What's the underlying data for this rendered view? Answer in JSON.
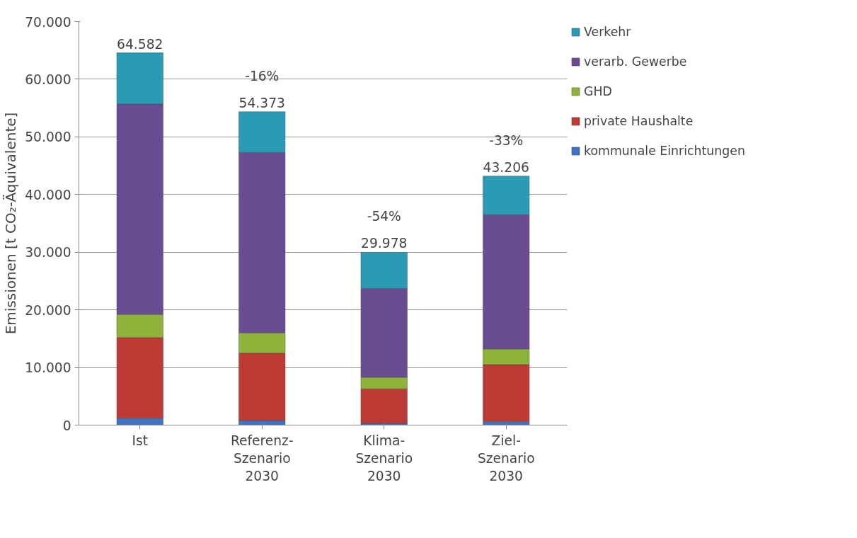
{
  "chart_data": {
    "type": "bar",
    "stacked": true,
    "ylabel": "Emissionen [t CO₂-Äquivalente]",
    "categories": [
      "Ist",
      "Referenz-\nSzenario\n2030",
      "Klima-\nSzenario\n2030",
      "Ziel-\nSzenario\n2030"
    ],
    "series": [
      {
        "name": "kommunale Einrichtungen",
        "color": "#3f72c0",
        "values": [
          1200,
          800,
          300,
          600
        ]
      },
      {
        "name": "private Haushalte",
        "color": "#be3a34",
        "values": [
          14000,
          11700,
          6000,
          9900
        ]
      },
      {
        "name": "GHD",
        "color": "#8db33a",
        "values": [
          4000,
          3500,
          2000,
          2700
        ]
      },
      {
        "name": "verarb. Gewerbe",
        "color": "#6a4c93",
        "values": [
          36500,
          31300,
          15400,
          23300
        ]
      },
      {
        "name": "Verkehr",
        "color": "#2b9bb5",
        "values": [
          8882,
          7073,
          6278,
          6706
        ]
      }
    ],
    "totals": [
      "64.582",
      "54.373",
      "29.978",
      "43.206"
    ],
    "annotations": [
      {
        "text": "-16%",
        "x": "Referenz-\nSzenario\n2030",
        "y": 54373
      },
      {
        "text": "-54%",
        "x": "Klima-\nSzenario\n2030",
        "y": 29978
      },
      {
        "text": "-33%",
        "x": "Ziel-\nSzenario\n2030",
        "y": 43206
      }
    ],
    "ylim": [
      0,
      70000
    ],
    "yticks": [
      {
        "value": 0,
        "label": "0"
      },
      {
        "value": 10000,
        "label": "10.000"
      },
      {
        "value": 20000,
        "label": "20.000"
      },
      {
        "value": 30000,
        "label": "30.000"
      },
      {
        "value": 40000,
        "label": "40.000"
      },
      {
        "value": 50000,
        "label": "50.000"
      },
      {
        "value": 60000,
        "label": "60.000"
      },
      {
        "value": 70000,
        "label": "70.000"
      }
    ],
    "grid": "y",
    "legend": "right"
  }
}
